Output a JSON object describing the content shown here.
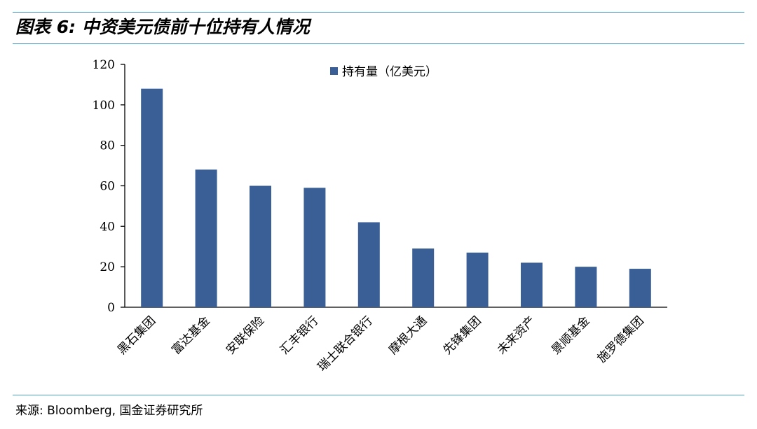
{
  "figure": {
    "title": "图表 6:  中资美元债前十位持有人情况",
    "source": "来源: Bloomberg, 国金证券研究所"
  },
  "colors": {
    "bar": "#3a5f96",
    "rule": "#4a9fc4",
    "axis": "#000000"
  },
  "chart_data": {
    "type": "bar",
    "title": "",
    "xlabel": "",
    "ylabel": "",
    "ylim": [
      0,
      120
    ],
    "yticks": [
      0,
      20,
      40,
      60,
      80,
      100,
      120
    ],
    "grid": false,
    "legend_position": "top-center",
    "categories": [
      "黑石集团",
      "富达基金",
      "安联保险",
      "汇丰银行",
      "瑞士联合银行",
      "摩根大通",
      "先锋集团",
      "未来资产",
      "景顺基金",
      "施罗德集团"
    ],
    "series": [
      {
        "name": "持有量（亿美元）",
        "values": [
          108,
          68,
          60,
          59,
          42,
          29,
          27,
          22,
          20,
          19
        ]
      }
    ]
  }
}
